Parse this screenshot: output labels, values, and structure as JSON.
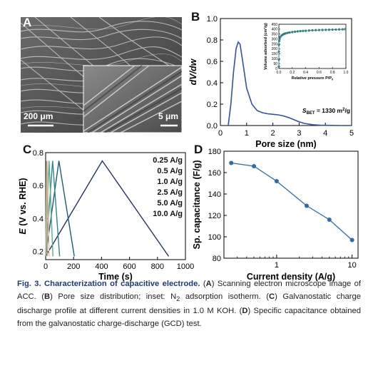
{
  "panels": {
    "a": {
      "label": "A",
      "scale_main": "200 μm",
      "scale_inset": "5 μm"
    },
    "b": {
      "label": "B"
    },
    "c": {
      "label": "C"
    },
    "d": {
      "label": "D"
    }
  },
  "chart_data": [
    {
      "id": "B",
      "type": "line",
      "xlabel": "Pore size (nm)",
      "ylabel": "dV/dw",
      "xlim": [
        0,
        5
      ],
      "ylim": [
        0,
        1.0
      ],
      "xticks": [
        "0",
        "1",
        "2",
        "3",
        "4",
        "5"
      ],
      "yticks": [
        "0.0",
        "0.2",
        "0.4",
        "0.6",
        "0.8",
        "1.0"
      ],
      "annotation": "S_BET = 1330 m²/g",
      "annotation_main": "S",
      "annotation_sub": "BET",
      "annotation_rest": " = 1330 m",
      "annotation_sup": "2",
      "annotation_tail": "/g",
      "color": "#2f4fb5",
      "series": [
        {
          "x": [
            0.3,
            0.4,
            0.5,
            0.6,
            0.68,
            0.75,
            0.85,
            1.0,
            1.2,
            1.4,
            1.6,
            1.8,
            2.0,
            2.2,
            2.4,
            2.6,
            2.8,
            3.0,
            3.2,
            3.5,
            3.8,
            4.2,
            4.6,
            5.0
          ],
          "y": [
            0.0,
            0.2,
            0.5,
            0.72,
            0.78,
            0.76,
            0.6,
            0.35,
            0.2,
            0.14,
            0.12,
            0.11,
            0.105,
            0.1,
            0.09,
            0.075,
            0.055,
            0.035,
            0.02,
            0.008,
            0.003,
            0.001,
            0.0,
            0.0
          ]
        }
      ],
      "inset": {
        "type": "scatter",
        "xlabel": "Relative pressure P/P",
        "xlabel_sub": "0",
        "ylabel": "Volume adsorbed (cm³/g)",
        "xlim": [
          0,
          1.0
        ],
        "ylim": [
          0,
          450
        ],
        "xticks": [
          "0.0",
          "0.2",
          "0.4",
          "0.6",
          "0.8",
          "1.0"
        ],
        "yticks": [
          "0",
          "50",
          "100",
          "150",
          "200",
          "250",
          "300",
          "350",
          "400",
          "450"
        ],
        "color": "#2e8b8b",
        "points": [
          [
            0.0,
            20
          ],
          [
            0.0,
            90
          ],
          [
            0.0,
            170
          ],
          [
            0.0,
            240
          ],
          [
            0.005,
            280
          ],
          [
            0.01,
            300
          ],
          [
            0.02,
            320
          ],
          [
            0.04,
            335
          ],
          [
            0.06,
            345
          ],
          [
            0.08,
            352
          ],
          [
            0.1,
            357
          ],
          [
            0.13,
            362
          ],
          [
            0.16,
            366
          ],
          [
            0.2,
            370
          ],
          [
            0.24,
            374
          ],
          [
            0.28,
            377
          ],
          [
            0.32,
            380
          ],
          [
            0.36,
            382
          ],
          [
            0.4,
            384
          ],
          [
            0.45,
            386
          ],
          [
            0.5,
            388
          ],
          [
            0.55,
            390
          ],
          [
            0.6,
            391
          ],
          [
            0.65,
            392
          ],
          [
            0.7,
            393
          ],
          [
            0.75,
            394
          ],
          [
            0.8,
            395
          ],
          [
            0.85,
            396
          ],
          [
            0.9,
            397
          ],
          [
            0.95,
            398
          ],
          [
            0.99,
            400
          ]
        ]
      }
    },
    {
      "id": "C",
      "type": "line",
      "xlabel": "Time (s)",
      "ylabel_italic": "E",
      "ylabel_rest": " (V vs. RHE)",
      "xlim": [
        0,
        1000
      ],
      "ylim": [
        0.15,
        0.8
      ],
      "xticks": [
        "0",
        "200",
        "400",
        "600",
        "800",
        "1000"
      ],
      "yticks": [
        "0.2",
        "0.4",
        "0.6",
        "0.8"
      ],
      "series": [
        {
          "name": "0.25 A/g",
          "color": "#1f3461",
          "x": [
            0,
            405,
            880
          ],
          "y": [
            0.17,
            0.75,
            0.17
          ]
        },
        {
          "name": "0.5 A/g",
          "color": "#1e5a7a",
          "x": [
            0,
            95,
            205
          ],
          "y": [
            0.17,
            0.75,
            0.17
          ]
        },
        {
          "name": "1.0 A/g",
          "color": "#2a8a8a",
          "x": [
            0,
            50,
            100
          ],
          "y": [
            0.17,
            0.75,
            0.17
          ]
        },
        {
          "name": "2.5 A/g",
          "color": "#4fae98",
          "x": [
            0,
            25,
            52
          ],
          "y": [
            0.17,
            0.75,
            0.17
          ]
        },
        {
          "name": "5.0 A/g",
          "color": "#e7b89f",
          "x": [
            0,
            12,
            25
          ],
          "y": [
            0.17,
            0.75,
            0.17
          ]
        },
        {
          "name": "10.0 A/g",
          "color": "#b8ae84",
          "x": [
            0,
            6,
            12
          ],
          "y": [
            0.17,
            0.75,
            0.17
          ]
        }
      ]
    },
    {
      "id": "D",
      "type": "line",
      "xlabel": "Current density (A/g)",
      "ylabel": "Sp. capacitance (F/g)",
      "xscale": "log",
      "xlim": [
        0.2,
        12
      ],
      "ylim": [
        80,
        180
      ],
      "xticks": [
        "1",
        "10"
      ],
      "yticks": [
        "80",
        "100",
        "120",
        "140",
        "160",
        "180"
      ],
      "color": "#2b6cb0",
      "series": [
        {
          "x": [
            0.25,
            0.5,
            1.0,
            2.5,
            5.0,
            10.0
          ],
          "y": [
            169,
            166,
            152,
            129,
            116,
            97
          ]
        }
      ]
    }
  ],
  "caption": {
    "title": "Fig. 3. Characterization of capacitive electrode.",
    "parts": [
      {
        "b": "A",
        "t": "Scanning electron microscope image of ACC."
      },
      {
        "b": "B",
        "t": "Pore size distribution; inset: N"
      },
      {
        "b": "C",
        "t": "Galvanostatic charge discharge profile at different current densities in 1.0 M KOH."
      },
      {
        "b": "D",
        "t": "Specific capacitance obtained from the galvanostatic charge-discharge (GCD) test."
      }
    ],
    "b_sub": "2",
    "b_tail": " adsorption isotherm."
  }
}
